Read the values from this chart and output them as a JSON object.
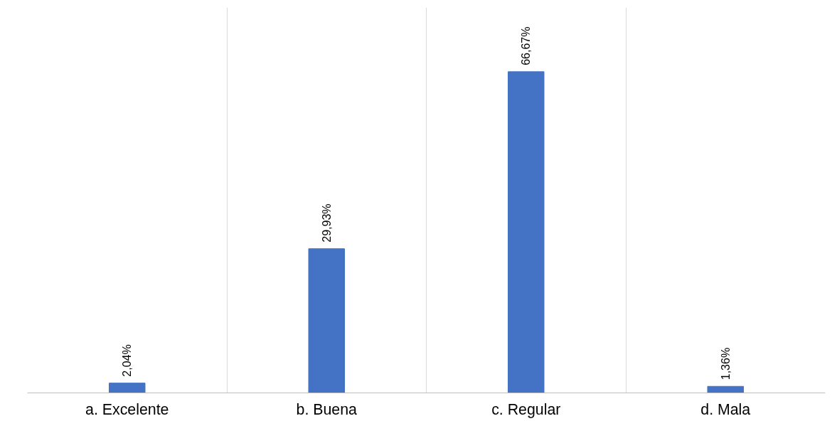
{
  "chart_data": {
    "type": "bar",
    "categories": [
      "a. Excelente",
      "b. Buena",
      "c. Regular",
      "d. Mala"
    ],
    "values": [
      2.04,
      29.93,
      66.67,
      1.36
    ],
    "value_labels": [
      "2,04%",
      "29,93%",
      "66,67%",
      "1,36%"
    ],
    "color": "#4472c4",
    "grid": "x"
  }
}
